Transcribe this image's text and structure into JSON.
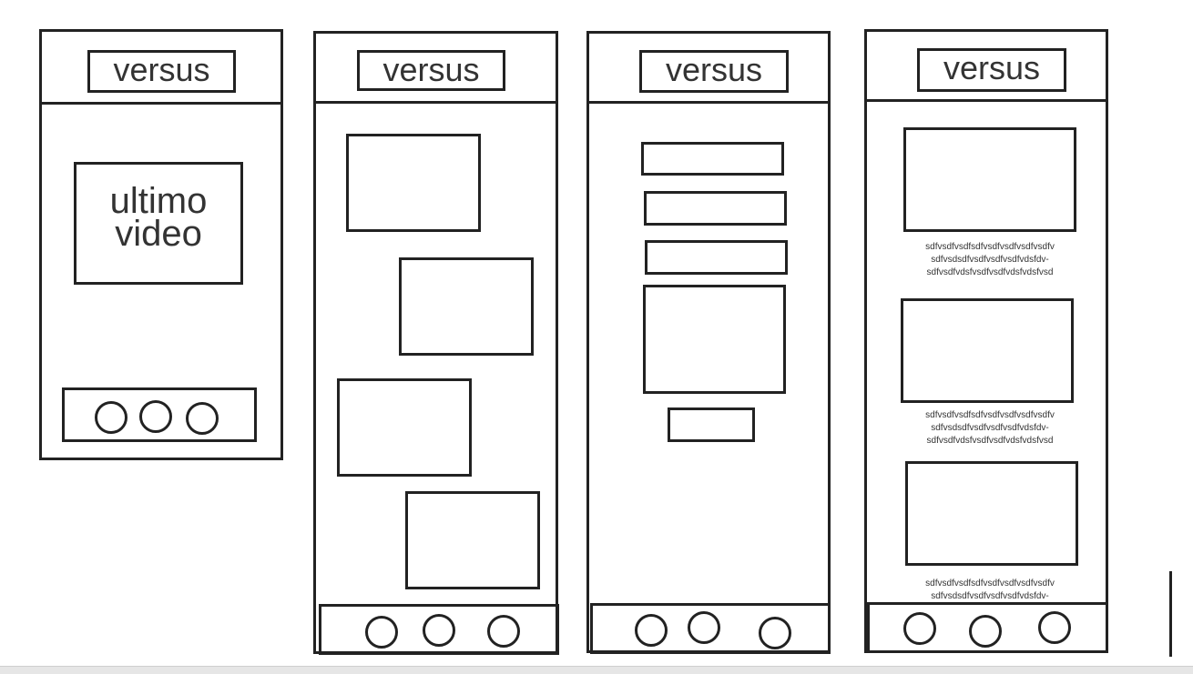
{
  "app": {
    "logo_text": "versus"
  },
  "screen1": {
    "hero_text": "ultimo\nvideo"
  },
  "screen4": {
    "captions": [
      "sdfvsdfvsdfsdfvsdfvsdfvsdfvsdfv\nsdfvsdsdfvsdfvsdfvsdfvdsfdv-\nsdfvsdfvdsfvsdfvsdfvdsfvdsfvsd",
      "sdfvsdfvsdfsdfvsdfvsdfvsdfvsdfv\nsdfvsdsdfvsdfvsdfvsdfvdsfdv-\nsdfvsdfvdsfvsdfvsdfvdsfvdsfvsd",
      "sdfvsdfvsdfsdfvsdfvsdfvsdfvsdfv\nsdfvsdsdfvsdfvsdfvsdfvdsfdv-"
    ]
  },
  "colors": {
    "stroke": "#222222",
    "text": "#333333",
    "background": "#ffffff"
  }
}
